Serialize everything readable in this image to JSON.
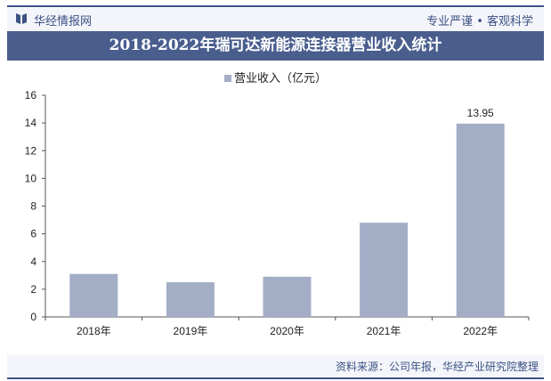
{
  "header": {
    "brand": "华经情报网",
    "slogan": "专业严谨 • 客观科学"
  },
  "footer": {
    "source": "资料来源：公司年报，华经产业研究院整理"
  },
  "colors": {
    "bar": "#a4adc6",
    "title_bg": "#4a5e8e",
    "accent": "#3c5184"
  },
  "chart_data": {
    "type": "bar",
    "title": "2018-2022年瑞可达新能源连接器营业收入统计",
    "legend": [
      "营业收入（亿元）"
    ],
    "legend_position": "top",
    "categories": [
      "2018年",
      "2019年",
      "2020年",
      "2021年",
      "2022年"
    ],
    "values": [
      3.1,
      2.5,
      2.9,
      6.8,
      13.95
    ],
    "data_labels": {
      "4": "13.95"
    },
    "ylim": [
      0,
      16
    ],
    "yticks": [
      0,
      2,
      4,
      6,
      8,
      10,
      12,
      14,
      16
    ],
    "grid": false,
    "xlabel": "",
    "ylabel": ""
  }
}
